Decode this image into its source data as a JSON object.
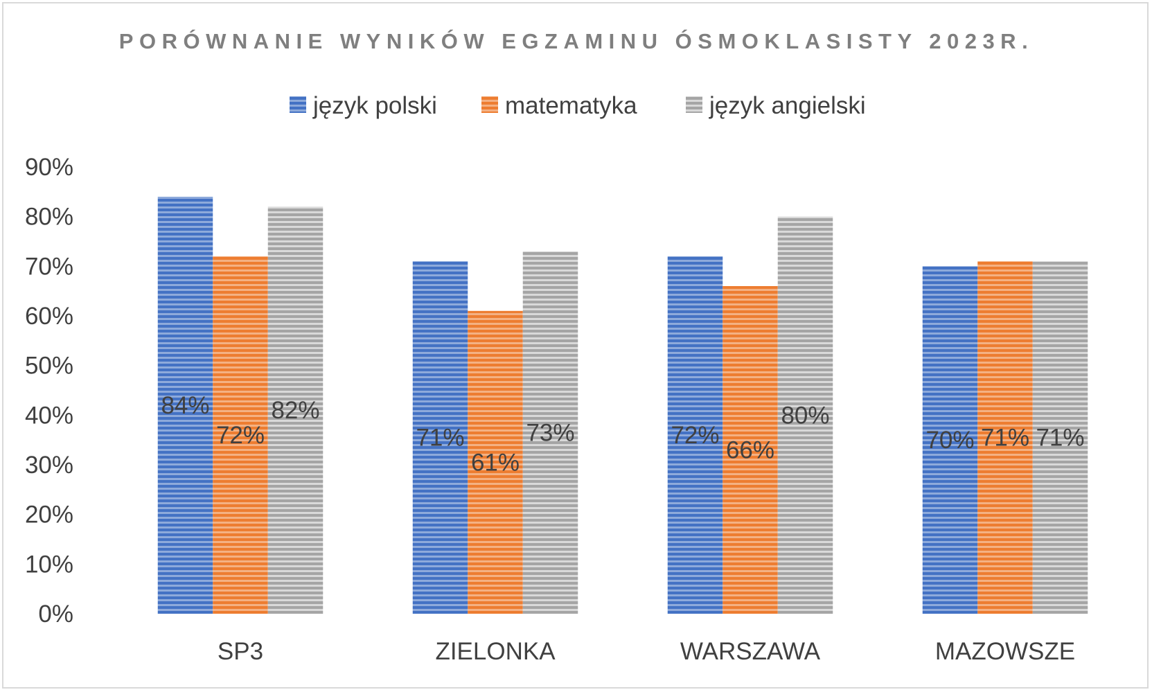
{
  "chart_data": {
    "type": "bar",
    "title": "PORÓWNANIE WYNIKÓW EGZAMINU ÓSMOKLASISTY 2023R.",
    "xlabel": "",
    "ylabel": "",
    "categories": [
      "SP3",
      "ZIELONKA",
      "WARSZAWA",
      "MAZOWSZE"
    ],
    "series": [
      {
        "name": "język polski",
        "values": [
          84,
          71,
          72,
          70
        ],
        "color": "#4472c4",
        "light": "#8eaadb"
      },
      {
        "name": "matematyka",
        "values": [
          72,
          61,
          66,
          71
        ],
        "color": "#ed7d31",
        "light": "#f4b183"
      },
      {
        "name": "język angielski",
        "values": [
          82,
          73,
          80,
          71
        ],
        "color": "#a5a5a5",
        "light": "#d9d9d9"
      }
    ],
    "value_labels": [
      [
        "84%",
        "71%",
        "72%",
        "70%"
      ],
      [
        "72%",
        "61%",
        "66%",
        "71%"
      ],
      [
        "82%",
        "73%",
        "80%",
        "71%"
      ]
    ],
    "ylim": [
      0,
      90
    ],
    "y_ticks": [
      0,
      10,
      20,
      30,
      40,
      50,
      60,
      70,
      80,
      90
    ],
    "y_tick_labels": [
      "0%",
      "10%",
      "20%",
      "30%",
      "40%",
      "50%",
      "60%",
      "70%",
      "80%",
      "90%"
    ],
    "legend_position": "top",
    "grid": false,
    "bar_pattern": "horizontal-stripes"
  }
}
